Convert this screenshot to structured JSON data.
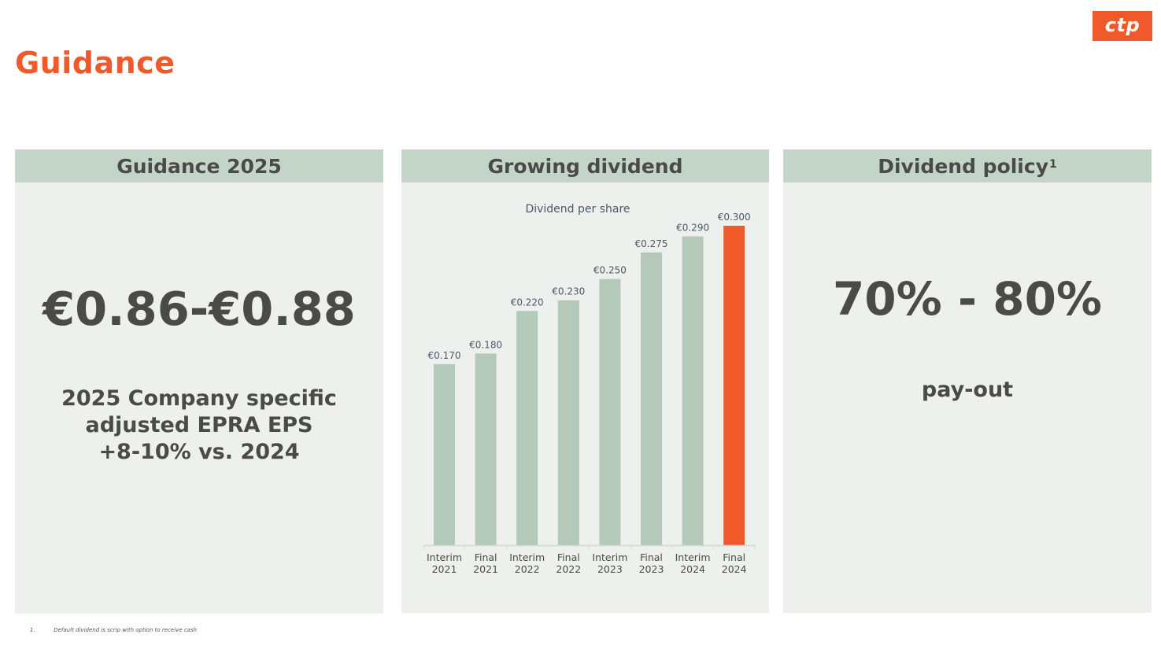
{
  "header": {
    "title": "Guidance",
    "logo_text": "ctp"
  },
  "panels": {
    "guidance": {
      "title": "Guidance 2025",
      "range": "€0.86-€0.88",
      "lines": [
        "2025 Company specific",
        "adjusted EPRA EPS",
        "+8-10% vs. 2024"
      ]
    },
    "dividend": {
      "title": "Growing dividend"
    },
    "policy": {
      "title": "Dividend policy",
      "title_sup": "1",
      "range": "70% - 80%",
      "subtitle": "pay-out"
    }
  },
  "chart_data": {
    "type": "bar",
    "title": "Dividend per share",
    "categories": [
      [
        "Interim",
        "2021"
      ],
      [
        "Final",
        "2021"
      ],
      [
        "Interim",
        "2022"
      ],
      [
        "Final",
        "2022"
      ],
      [
        "Interim",
        "2023"
      ],
      [
        "Final",
        "2023"
      ],
      [
        "Interim",
        "2024"
      ],
      [
        "Final",
        "2024"
      ]
    ],
    "values": [
      0.17,
      0.18,
      0.22,
      0.23,
      0.25,
      0.275,
      0.29,
      0.3
    ],
    "labels": [
      "€0.170",
      "€0.180",
      "€0.220",
      "€0.230",
      "€0.250",
      "€0.275",
      "€0.290",
      "€0.300"
    ],
    "colors": {
      "bar": "#b5c9ba",
      "highlight": "#f05a2a",
      "label": "#4b5868",
      "axis": "#d2d8d3"
    },
    "highlight_index": 7,
    "ylim": [
      0,
      0.3
    ]
  },
  "footnote": {
    "number": "1.",
    "text": "Default dividend is scrip with option to receive cash"
  },
  "colors": {
    "accent": "#f05a2a",
    "panel_bg": "#edf0ed",
    "panel_header": "#c3d5c9"
  }
}
